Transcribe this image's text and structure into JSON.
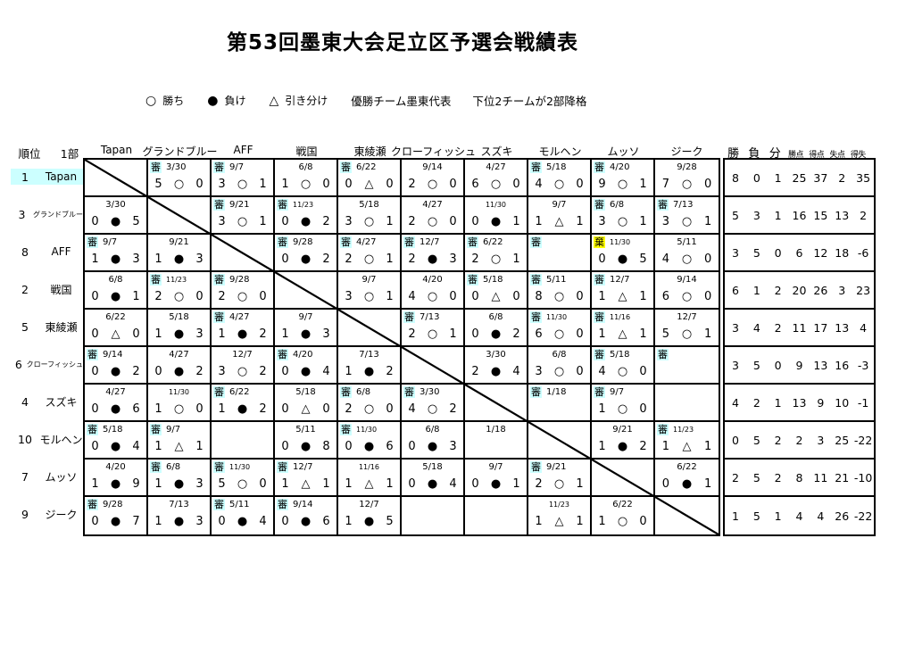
{
  "title": "第53回墨東大会足立区予選会戦績表",
  "legend": {
    "items": [
      {
        "symbol": "○",
        "label": "勝ち"
      },
      {
        "symbol": "●",
        "label": "負け"
      },
      {
        "symbol": "△",
        "label": "引き分け"
      }
    ],
    "notes": [
      "優勝チーム墨東代表",
      "下位2チームが2部降格"
    ]
  },
  "header": {
    "rank_label": "順位",
    "division_label": "1部",
    "teams": [
      "Tapan",
      "グランドブルー",
      "AFF",
      "戦国",
      "東綾瀬",
      "クローフィッシュ",
      "スズキ",
      "モルヘン",
      "ムッソ",
      "ジーク"
    ],
    "stats_labels": [
      "勝",
      "負",
      "分",
      "勝点",
      "得点",
      "失点",
      "得失"
    ]
  },
  "colors": {
    "referee_highlight": "#ccffff",
    "forfeit_highlight": "#ffff00",
    "leader_highlight": "#ccffff"
  },
  "rows": [
    {
      "rank": "1",
      "team": "Tapan",
      "highlight": true,
      "cells": [
        {
          "diagonal": true
        },
        {
          "marker": "審",
          "date": "3/30",
          "score": [
            "5",
            "○",
            "0"
          ]
        },
        {
          "marker": "審",
          "date": "9/7",
          "score": [
            "3",
            "○",
            "1"
          ]
        },
        {
          "date": "6/8",
          "score": [
            "1",
            "○",
            "0"
          ]
        },
        {
          "marker": "審",
          "date": "6/22",
          "score": [
            "0",
            "△",
            "0"
          ]
        },
        {
          "date": "9/14",
          "score": [
            "2",
            "○",
            "0"
          ]
        },
        {
          "date": "4/27",
          "score": [
            "6",
            "○",
            "0"
          ]
        },
        {
          "marker": "審",
          "date": "5/18",
          "score": [
            "4",
            "○",
            "0"
          ]
        },
        {
          "marker": "審",
          "date": "4/20",
          "score": [
            "9",
            "○",
            "1"
          ]
        },
        {
          "date": "9/28",
          "score": [
            "7",
            "○",
            "0"
          ]
        }
      ],
      "stats": [
        "8",
        "0",
        "1",
        "25",
        "37",
        "2",
        "35"
      ]
    },
    {
      "rank": "3",
      "team": "グランドブルー",
      "highlight": false,
      "cells": [
        {
          "date": "3/30",
          "score": [
            "0",
            "●",
            "5"
          ]
        },
        {
          "diagonal": true
        },
        {
          "marker": "審",
          "date": "9/21",
          "score": [
            "3",
            "○",
            "1"
          ]
        },
        {
          "marker": "審",
          "date": "11/23",
          "score": [
            "0",
            "●",
            "2"
          ]
        },
        {
          "date": "5/18",
          "score": [
            "3",
            "○",
            "1"
          ]
        },
        {
          "date": "4/27",
          "score": [
            "2",
            "○",
            "0"
          ]
        },
        {
          "date": "11/30",
          "score": [
            "0",
            "●",
            "1"
          ]
        },
        {
          "date": "9/7",
          "score": [
            "1",
            "△",
            "1"
          ]
        },
        {
          "marker": "審",
          "date": "6/8",
          "score": [
            "3",
            "○",
            "1"
          ]
        },
        {
          "marker": "審",
          "date": "7/13",
          "score": [
            "3",
            "○",
            "1"
          ]
        }
      ],
      "stats": [
        "5",
        "3",
        "1",
        "16",
        "15",
        "13",
        "2"
      ]
    },
    {
      "rank": "8",
      "team": "AFF",
      "highlight": false,
      "cells": [
        {
          "marker": "審",
          "date": "9/7",
          "score": [
            "1",
            "●",
            "3"
          ]
        },
        {
          "date": "9/21",
          "score": [
            "1",
            "●",
            "3"
          ]
        },
        {
          "diagonal": true
        },
        {
          "marker": "審",
          "date": "9/28",
          "score": [
            "0",
            "●",
            "2"
          ]
        },
        {
          "marker": "審",
          "date": "4/27",
          "score": [
            "2",
            "○",
            "1"
          ]
        },
        {
          "marker": "審",
          "date": "12/7",
          "score": [
            "2",
            "●",
            "3"
          ]
        },
        {
          "marker": "審",
          "date": "6/22",
          "score": [
            "2",
            "○",
            "1"
          ]
        },
        {
          "marker": "審"
        },
        {
          "marker": "棄",
          "date": "11/30",
          "score": [
            "0",
            "●",
            "5"
          ]
        },
        {
          "date": "5/11",
          "score": [
            "4",
            "○",
            "0"
          ]
        }
      ],
      "stats": [
        "3",
        "5",
        "0",
        "6",
        "12",
        "18",
        "-6"
      ]
    },
    {
      "rank": "2",
      "team": "戦国",
      "highlight": false,
      "cells": [
        {
          "date": "6/8",
          "score": [
            "0",
            "●",
            "1"
          ]
        },
        {
          "marker": "審",
          "date": "11/23",
          "score": [
            "2",
            "○",
            "0"
          ]
        },
        {
          "marker": "審",
          "date": "9/28",
          "score": [
            "2",
            "○",
            "0"
          ]
        },
        {
          "diagonal": true
        },
        {
          "date": "9/7",
          "score": [
            "3",
            "○",
            "1"
          ]
        },
        {
          "date": "4/20",
          "score": [
            "4",
            "○",
            "0"
          ]
        },
        {
          "marker": "審",
          "date": "5/18",
          "score": [
            "0",
            "△",
            "0"
          ]
        },
        {
          "marker": "審",
          "date": "5/11",
          "score": [
            "8",
            "○",
            "0"
          ]
        },
        {
          "marker": "審",
          "date": "12/7",
          "score": [
            "1",
            "△",
            "1"
          ]
        },
        {
          "date": "9/14",
          "score": [
            "6",
            "○",
            "0"
          ]
        }
      ],
      "stats": [
        "6",
        "1",
        "2",
        "20",
        "26",
        "3",
        "23"
      ]
    },
    {
      "rank": "5",
      "team": "東綾瀬",
      "highlight": false,
      "cells": [
        {
          "date": "6/22",
          "score": [
            "0",
            "△",
            "0"
          ]
        },
        {
          "date": "5/18",
          "score": [
            "1",
            "●",
            "3"
          ]
        },
        {
          "marker": "審",
          "date": "4/27",
          "score": [
            "1",
            "●",
            "2"
          ]
        },
        {
          "date": "9/7",
          "score": [
            "1",
            "●",
            "3"
          ]
        },
        {
          "diagonal": true
        },
        {
          "marker": "審",
          "date": "7/13",
          "score": [
            "2",
            "○",
            "1"
          ]
        },
        {
          "date": "6/8",
          "score": [
            "0",
            "●",
            "2"
          ]
        },
        {
          "marker": "審",
          "date": "11/30",
          "score": [
            "6",
            "○",
            "0"
          ]
        },
        {
          "marker": "審",
          "date": "11/16",
          "score": [
            "1",
            "△",
            "1"
          ]
        },
        {
          "date": "12/7",
          "score": [
            "5",
            "○",
            "1"
          ]
        }
      ],
      "stats": [
        "3",
        "4",
        "2",
        "11",
        "17",
        "13",
        "4"
      ]
    },
    {
      "rank": "6",
      "team": "クローフィッシュ",
      "highlight": false,
      "cells": [
        {
          "marker": "審",
          "date": "9/14",
          "score": [
            "0",
            "●",
            "2"
          ]
        },
        {
          "date": "4/27",
          "score": [
            "0",
            "●",
            "2"
          ]
        },
        {
          "date": "12/7",
          "score": [
            "3",
            "○",
            "2"
          ]
        },
        {
          "marker": "審",
          "date": "4/20",
          "score": [
            "0",
            "●",
            "4"
          ]
        },
        {
          "date": "7/13",
          "score": [
            "1",
            "●",
            "2"
          ]
        },
        {
          "diagonal": true
        },
        {
          "date": "3/30",
          "score": [
            "2",
            "●",
            "4"
          ]
        },
        {
          "date": "6/8",
          "score": [
            "3",
            "○",
            "0"
          ]
        },
        {
          "marker": "審",
          "date": "5/18",
          "score": [
            "4",
            "○",
            "0"
          ]
        },
        {
          "marker": "審"
        }
      ],
      "stats": [
        "3",
        "5",
        "0",
        "9",
        "13",
        "16",
        "-3"
      ]
    },
    {
      "rank": "4",
      "team": "スズキ",
      "highlight": false,
      "cells": [
        {
          "date": "4/27",
          "score": [
            "0",
            "●",
            "6"
          ]
        },
        {
          "date": "11/30",
          "score": [
            "1",
            "○",
            "0"
          ]
        },
        {
          "marker": "審",
          "date": "6/22",
          "score": [
            "1",
            "●",
            "2"
          ]
        },
        {
          "date": "5/18",
          "score": [
            "0",
            "△",
            "0"
          ]
        },
        {
          "marker": "審",
          "date": "6/8",
          "score": [
            "2",
            "○",
            "0"
          ]
        },
        {
          "marker": "審",
          "date": "3/30",
          "score": [
            "4",
            "○",
            "2"
          ]
        },
        {
          "diagonal": true
        },
        {
          "marker": "審",
          "date": "1/18"
        },
        {
          "marker": "審",
          "date": "9/7",
          "score": [
            "1",
            "○",
            "0"
          ]
        },
        {}
      ],
      "stats": [
        "4",
        "2",
        "1",
        "13",
        "9",
        "10",
        "-1"
      ]
    },
    {
      "rank": "10",
      "team": "モルヘン",
      "highlight": false,
      "cells": [
        {
          "marker": "審",
          "date": "5/18",
          "score": [
            "0",
            "●",
            "4"
          ]
        },
        {
          "marker": "審",
          "date": "9/7",
          "score": [
            "1",
            "△",
            "1"
          ]
        },
        {},
        {
          "date": "5/11",
          "score": [
            "0",
            "●",
            "8"
          ]
        },
        {
          "marker": "審",
          "date": "11/30",
          "score": [
            "0",
            "●",
            "6"
          ]
        },
        {
          "date": "6/8",
          "score": [
            "0",
            "●",
            "3"
          ]
        },
        {
          "date": "1/18"
        },
        {
          "diagonal": true
        },
        {
          "date": "9/21",
          "score": [
            "1",
            "●",
            "2"
          ]
        },
        {
          "marker": "審",
          "date": "11/23",
          "score": [
            "1",
            "△",
            "1"
          ]
        }
      ],
      "stats": [
        "0",
        "5",
        "2",
        "2",
        "3",
        "25",
        "-22"
      ]
    },
    {
      "rank": "7",
      "team": "ムッソ",
      "highlight": false,
      "cells": [
        {
          "date": "4/20",
          "score": [
            "1",
            "●",
            "9"
          ]
        },
        {
          "marker": "審",
          "date": "6/8",
          "score": [
            "1",
            "●",
            "3"
          ]
        },
        {
          "marker": "審",
          "date": "11/30",
          "score": [
            "5",
            "○",
            "0"
          ]
        },
        {
          "marker": "審",
          "date": "12/7",
          "score": [
            "1",
            "△",
            "1"
          ]
        },
        {
          "date": "11/16",
          "score": [
            "1",
            "△",
            "1"
          ]
        },
        {
          "date": "5/18",
          "score": [
            "0",
            "●",
            "4"
          ]
        },
        {
          "date": "9/7",
          "score": [
            "0",
            "●",
            "1"
          ]
        },
        {
          "marker": "審",
          "date": "9/21",
          "score": [
            "2",
            "○",
            "1"
          ]
        },
        {
          "diagonal": true
        },
        {
          "date": "6/22",
          "score": [
            "0",
            "●",
            "1"
          ]
        }
      ],
      "stats": [
        "2",
        "5",
        "2",
        "8",
        "11",
        "21",
        "-10"
      ]
    },
    {
      "rank": "9",
      "team": "ジーク",
      "highlight": false,
      "cells": [
        {
          "marker": "審",
          "date": "9/28",
          "score": [
            "0",
            "●",
            "7"
          ]
        },
        {
          "date": "7/13",
          "score": [
            "1",
            "●",
            "3"
          ]
        },
        {
          "marker": "審",
          "date": "5/11",
          "score": [
            "0",
            "●",
            "4"
          ]
        },
        {
          "marker": "審",
          "date": "9/14",
          "score": [
            "0",
            "●",
            "6"
          ]
        },
        {
          "date": "12/7",
          "score": [
            "1",
            "●",
            "5"
          ]
        },
        {},
        {},
        {
          "date": "11/23",
          "score": [
            "1",
            "△",
            "1"
          ]
        },
        {
          "date": "6/22",
          "score": [
            "1",
            "○",
            "0"
          ]
        },
        {
          "diagonal": true
        }
      ],
      "stats": [
        "1",
        "5",
        "1",
        "4",
        "4",
        "26",
        "-22"
      ]
    }
  ]
}
